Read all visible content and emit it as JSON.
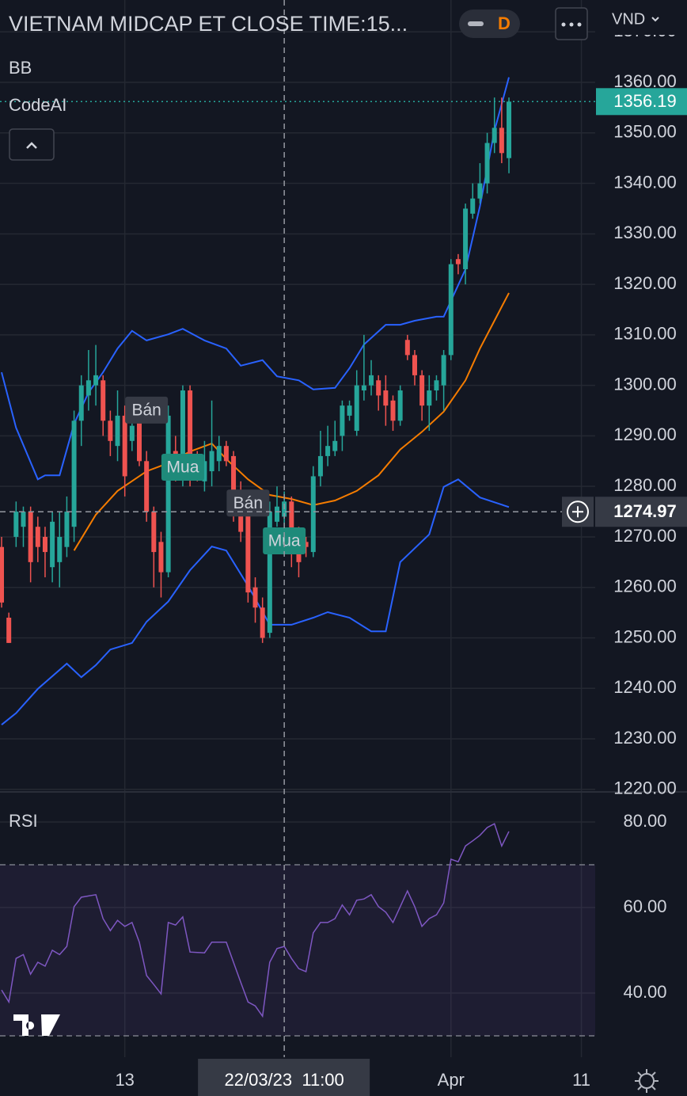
{
  "header": {
    "title": "VIETNAM MIDCAP ET CLOSE TIME:15...",
    "interval": "D",
    "currency": "VND"
  },
  "chart_data": [
    {
      "type": "candlestick",
      "indicators": [
        "BB",
        "CodeAI"
      ],
      "up_color": "#26a69a",
      "down_color": "#ef5350",
      "x": [
        0,
        1,
        2,
        3,
        4,
        5,
        6,
        7,
        8,
        9,
        10,
        11,
        12,
        13,
        14,
        15,
        16,
        17,
        18,
        19,
        20,
        21,
        22,
        23,
        24,
        25,
        26,
        27,
        28,
        29,
        30,
        31,
        32,
        33,
        34,
        35,
        36,
        37,
        38,
        39,
        40,
        41,
        42,
        43,
        44,
        45,
        46,
        47,
        48,
        49,
        50,
        51,
        52,
        53,
        54,
        55,
        56,
        57,
        58,
        59,
        60,
        61,
        62,
        63,
        64,
        65,
        66,
        67,
        68,
        69,
        70
      ],
      "open": [
        1268,
        1254,
        1270,
        1272,
        1275,
        1272,
        1270,
        1264,
        1265,
        1268,
        1272,
        1293,
        1298,
        1300,
        1301,
        1293,
        1288,
        1294,
        1289,
        1293,
        1285,
        1275,
        1269,
        1263,
        1287,
        1282,
        1299,
        1285,
        1281,
        1283,
        1285,
        1288,
        1286,
        1279,
        1276,
        1260,
        1256,
        1251,
        1273,
        1274,
        1277,
        1271,
        1269,
        1267,
        1282,
        1286,
        1287,
        1290,
        1294,
        1291,
        1299,
        1300,
        1301,
        1299,
        1297,
        1293,
        1309,
        1306,
        1302,
        1296,
        1299,
        1300,
        1306,
        1325,
        1323,
        1334,
        1337,
        1340,
        1348,
        1351,
        1345
      ],
      "high": [
        1270,
        1255,
        1277,
        1276,
        1276,
        1274,
        1272,
        1275,
        1275,
        1278,
        1295,
        1302,
        1307,
        1308,
        1302,
        1295,
        1299,
        1296,
        1296,
        1296,
        1287,
        1276,
        1271,
        1296,
        1290,
        1300,
        1300,
        1287,
        1289,
        1297,
        1290,
        1289,
        1287,
        1281,
        1278,
        1262,
        1258,
        1277,
        1280,
        1279,
        1278,
        1272,
        1270,
        1284,
        1291,
        1292,
        1293,
        1297,
        1297,
        1303,
        1310,
        1305,
        1302,
        1302,
        1298,
        1300,
        1310,
        1307,
        1303,
        1302,
        1302,
        1307,
        1325,
        1326,
        1336,
        1340,
        1344,
        1350,
        1357,
        1357,
        1357
      ],
      "low": [
        1256,
        1249,
        1268,
        1268,
        1261,
        1265,
        1262,
        1261,
        1260,
        1266,
        1269,
        1288,
        1295,
        1296,
        1290,
        1286,
        1285,
        1278,
        1287,
        1284,
        1273,
        1260,
        1258,
        1262,
        1281,
        1280,
        1280,
        1281,
        1279,
        1280,
        1283,
        1284,
        1273,
        1269,
        1257,
        1253,
        1249,
        1250,
        1272,
        1272,
        1264,
        1262,
        1266,
        1266,
        1280,
        1284,
        1286,
        1287,
        1293,
        1290,
        1297,
        1298,
        1295,
        1292,
        1291,
        1292,
        1305,
        1300,
        1293,
        1291,
        1297,
        1295,
        1305,
        1322,
        1320,
        1333,
        1336,
        1338,
        1346,
        1344,
        1342
      ],
      "close": [
        1257,
        1249,
        1275,
        1275,
        1265,
        1268,
        1267,
        1273,
        1270,
        1275,
        1293,
        1300,
        1301,
        1302,
        1293,
        1289,
        1294,
        1282,
        1292,
        1285,
        1275,
        1267,
        1263,
        1294,
        1283,
        1299,
        1282,
        1283,
        1285,
        1287,
        1288,
        1285,
        1275,
        1271,
        1259,
        1256,
        1250,
        1275,
        1276,
        1277,
        1268,
        1265,
        1268,
        1282,
        1286,
        1288,
        1289,
        1296,
        1296,
        1300,
        1300,
        1302,
        1298,
        1296,
        1293,
        1299,
        1306,
        1302,
        1296,
        1299,
        1301,
        1306,
        1324,
        1324,
        1335,
        1337,
        1340,
        1348,
        1351,
        1346,
        1356.19
      ],
      "bands": [
        {
          "color": "#2962ff",
          "x": [
            0,
            2,
            5,
            6,
            8,
            10,
            12,
            14,
            16,
            18,
            20,
            23,
            25,
            28,
            31,
            33,
            36,
            38,
            41,
            43,
            46,
            48,
            50,
            53,
            55,
            57,
            60,
            61,
            64,
            66,
            68,
            70
          ],
          "values": [
            1302.6,
            1291.6,
            1281.4,
            1282.2,
            1282.2,
            1292.4,
            1298.6,
            1302.6,
            1307.3,
            1310.8,
            1308.9,
            1310.1,
            1311.2,
            1308.9,
            1307.3,
            1303.9,
            1305,
            1301.8,
            1301,
            1299.2,
            1299.5,
            1303.4,
            1308.1,
            1312,
            1312,
            1312.8,
            1313.6,
            1313.6,
            1323,
            1335.5,
            1350.4,
            1361
          ]
        },
        {
          "color": "#f57c00",
          "x": [
            10,
            13,
            16,
            20,
            23,
            26,
            29,
            31,
            34,
            37,
            40,
            43,
            46,
            49,
            52,
            55,
            58,
            61,
            64,
            66,
            68,
            70
          ],
          "values": [
            1267.3,
            1274.4,
            1279.1,
            1283,
            1284.6,
            1286.9,
            1288.5,
            1285.4,
            1281.4,
            1278.3,
            1277.5,
            1276.3,
            1277.2,
            1279.1,
            1282.2,
            1287.3,
            1290.8,
            1294.8,
            1301,
            1307.3,
            1312.8,
            1318.3
          ]
        },
        {
          "color": "#2962ff",
          "x": [
            0,
            2,
            5,
            9,
            11,
            13,
            15,
            18,
            20,
            23,
            26,
            29,
            31,
            34,
            37,
            40,
            43,
            45,
            48,
            51,
            53,
            55,
            59,
            61,
            63,
            66,
            70
          ],
          "values": [
            1232.8,
            1235.1,
            1239.9,
            1244.9,
            1242.2,
            1244.6,
            1247.7,
            1249,
            1253.2,
            1257.2,
            1263.4,
            1268.1,
            1267.3,
            1260.3,
            1252.6,
            1252.6,
            1254,
            1255.1,
            1254,
            1251.3,
            1251.3,
            1265,
            1270.5,
            1279.9,
            1281.4,
            1277.8,
            1275.9
          ]
        }
      ],
      "signals": [
        {
          "label": "Bán",
          "x": 20,
          "price": 1295.1
        },
        {
          "label": "Mua",
          "x": 25,
          "price": 1283.8
        },
        {
          "label": "Bán",
          "x": 34,
          "price": 1276.7
        },
        {
          "label": "Mua",
          "x": 39,
          "price": 1269.2
        }
      ],
      "crosshair": {
        "x": 39,
        "price": 1274.97,
        "label": "22/03/23  11:00"
      },
      "xlim": [
        -0.22,
        81.9
      ],
      "xticks": [
        {
          "value": 17,
          "label": "13"
        },
        {
          "value": 62,
          "label": "Apr"
        },
        {
          "value": 80,
          "label": "11"
        }
      ],
      "ylim": [
        1219.5,
        1376.31
      ],
      "yticks": [
        {
          "value": 1220,
          "label": "1220.00"
        },
        {
          "value": 1230,
          "label": "1230.00"
        },
        {
          "value": 1240,
          "label": "1240.00"
        },
        {
          "value": 1250,
          "label": "1250.00"
        },
        {
          "value": 1260,
          "label": "1260.00"
        },
        {
          "value": 1270,
          "label": "1270.00"
        },
        {
          "value": 1280,
          "label": "1280.00"
        },
        {
          "value": 1290,
          "label": "1290.00"
        },
        {
          "value": 1300,
          "label": "1300.00"
        },
        {
          "value": 1310,
          "label": "1310.00"
        },
        {
          "value": 1320,
          "label": "1320.00"
        },
        {
          "value": 1330,
          "label": "1330.00"
        },
        {
          "value": 1340,
          "label": "1340.00"
        },
        {
          "value": 1350,
          "label": "1350.00"
        },
        {
          "value": 1360,
          "label": "1360.00"
        },
        {
          "value": 1370,
          "label": "1370.00"
        }
      ],
      "grid": true
    },
    {
      "type": "line",
      "title": "RSI",
      "color": "#7e57c2",
      "values": [
        40.7,
        37.9,
        48.1,
        49,
        44.4,
        47.2,
        46.3,
        50,
        49,
        50.9,
        60.2,
        62.4,
        62.7,
        63,
        57.4,
        54.6,
        57,
        55.6,
        56.5,
        51.9,
        44.1,
        42,
        39.8,
        56.5,
        55.9,
        57.8,
        49.6,
        49.5,
        49.4,
        51.9,
        51.9,
        51.9,
        47.2,
        42.5,
        37.9,
        37,
        34.6,
        47.2,
        50.4,
        50.9,
        48.1,
        45.7,
        45,
        54.1,
        56.5,
        56.5,
        57.4,
        60.6,
        58.3,
        61.7,
        62,
        63,
        60.2,
        58.9,
        56.5,
        60.2,
        63.9,
        60.2,
        55.6,
        57.4,
        58.3,
        61.1,
        71.3,
        70.7,
        74.4,
        75.6,
        76.9,
        78.7,
        79.6,
        74.4,
        77.8
      ],
      "band": [
        30,
        70
      ],
      "ylim": [
        25,
        87.04
      ],
      "yticks": [
        {
          "value": 40,
          "label": "40.00"
        },
        {
          "value": 60,
          "label": "60.00"
        },
        {
          "value": 80,
          "label": "80.00"
        }
      ]
    }
  ]
}
